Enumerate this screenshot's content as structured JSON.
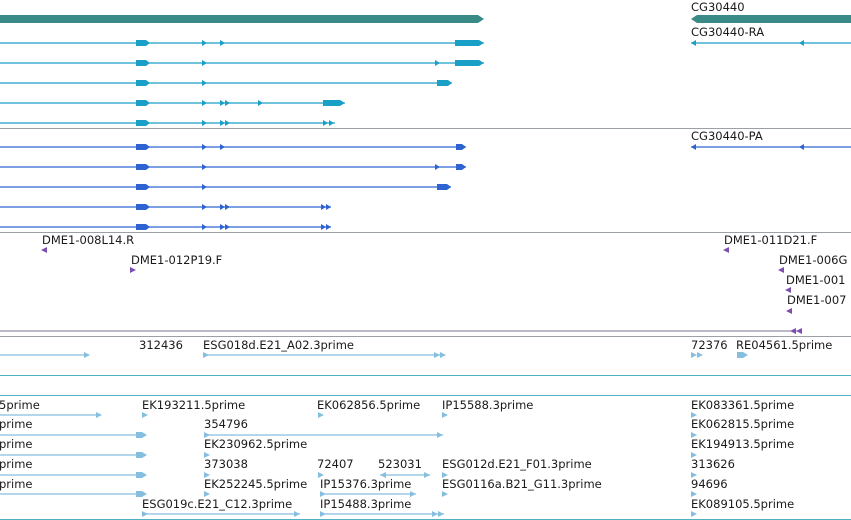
{
  "colors": {
    "gene": "#3a8a88",
    "transcript_ra": "#1a9fc6",
    "transcript_pa": "#2f63d2",
    "clone_end": "#7d4eb0",
    "est": "#86bedf",
    "separator": "#9aa0a6",
    "est_separator": "#4fb0c0"
  },
  "gene_track": {
    "labels": [
      "CG30440"
    ]
  },
  "rna_track": {
    "labels": [
      "CG30440-RA"
    ]
  },
  "protein_track": {
    "labels": [
      "CG30440-PA"
    ]
  },
  "clone_track": {
    "labels": [
      "DME1-008L14.R",
      "DME1-012P19.F",
      "DME1-011D21.F",
      "DME1-006G",
      "DME1-001",
      "DME1-007"
    ]
  },
  "est_track_upper": {
    "labels": [
      "312436",
      "ESG018d.E21_A02.3prime",
      "72376",
      "RE04561.5prime"
    ]
  },
  "est_track_lower": {
    "labels": [
      "5prime",
      "EK193211.5prime",
      "EK062856.5prime",
      "IP15588.3prime",
      "EK083361.5prime",
      "prime",
      "354796",
      "EK062815.5prime",
      "prime",
      "EK230962.5prime",
      "EK194913.5prime",
      "prime",
      "373038",
      "72407",
      "523031",
      "ESG012d.E21_F01.3prime",
      "313626",
      "prime",
      "EK252245.5prime",
      "IP15376.3prime",
      "ESG0116a.B21_G11.3prime",
      "94696",
      "ESG019c.E21_C12.3prime",
      "IP15488.3prime",
      "EK089105.5prime"
    ]
  }
}
